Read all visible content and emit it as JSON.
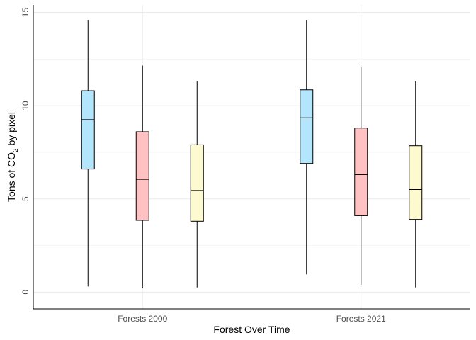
{
  "chart_data": {
    "type": "boxplot",
    "xlabel": "Forest Over Time",
    "ylabel_prefix": "Tons of CO",
    "ylabel_subscript": "2",
    "ylabel_suffix": " by pixel",
    "ylim": [
      -0.9,
      15.4
    ],
    "yticks": [
      0,
      5,
      10,
      15
    ],
    "grid": true,
    "categories": [
      "Forests 2000",
      "Forests 2021"
    ],
    "groups": [
      {
        "category": "Forests 2000",
        "boxes": [
          {
            "color": "#b3e5fc",
            "min": 0.3,
            "q1": 6.6,
            "median": 9.25,
            "q3": 10.8,
            "max": 14.6
          },
          {
            "color": "#ffc1c1",
            "min": 0.2,
            "q1": 3.85,
            "median": 6.05,
            "q3": 8.6,
            "max": 12.15
          },
          {
            "color": "#fdfad0",
            "min": 0.25,
            "q1": 3.8,
            "median": 5.45,
            "q3": 7.9,
            "max": 11.3
          }
        ]
      },
      {
        "category": "Forests 2021",
        "boxes": [
          {
            "color": "#b3e5fc",
            "min": 0.95,
            "q1": 6.9,
            "median": 9.35,
            "q3": 10.85,
            "max": 14.6
          },
          {
            "color": "#ffc1c1",
            "min": 0.4,
            "q1": 4.1,
            "median": 6.3,
            "q3": 8.8,
            "max": 12.05
          },
          {
            "color": "#fdfad0",
            "min": 0.25,
            "q1": 3.9,
            "median": 5.5,
            "q3": 7.85,
            "max": 11.3
          }
        ]
      }
    ]
  }
}
